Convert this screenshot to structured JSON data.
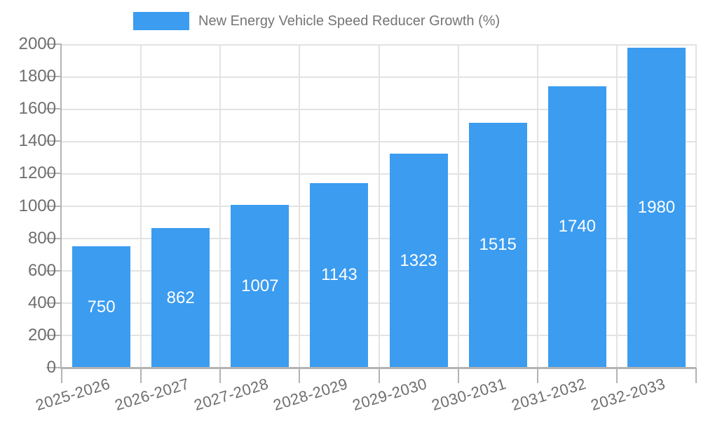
{
  "legend": {
    "label": "New Energy Vehicle Speed Reducer Growth (%)"
  },
  "colors": {
    "bar": "#3B9CF0",
    "bar_value_label": "#FFFFFF",
    "legend_text": "#757575",
    "axis_text": "#6E6E6E",
    "grid_line": "#E3E3E3",
    "axis_line": "#B3B3B3"
  },
  "chart_data": {
    "type": "bar",
    "title": "",
    "series_name": "New Energy Vehicle Speed Reducer Growth (%)",
    "categories": [
      "2025-2026",
      "2026-2027",
      "2027-2028",
      "2028-2029",
      "2029-2030",
      "2030-2031",
      "2031-2032",
      "2032-2033"
    ],
    "values": [
      750,
      862,
      1007,
      1143,
      1323,
      1515,
      1740,
      1980
    ],
    "ylim": [
      0,
      2000
    ],
    "ytick_step": 200,
    "yticks": [
      0,
      200,
      400,
      600,
      800,
      1000,
      1200,
      1400,
      1600,
      1800,
      2000
    ],
    "grid": true,
    "legend_position": "top-center",
    "value_labels": "inside-center",
    "x_tick_label_rotation_deg": -17,
    "xlabel": "",
    "ylabel": ""
  }
}
